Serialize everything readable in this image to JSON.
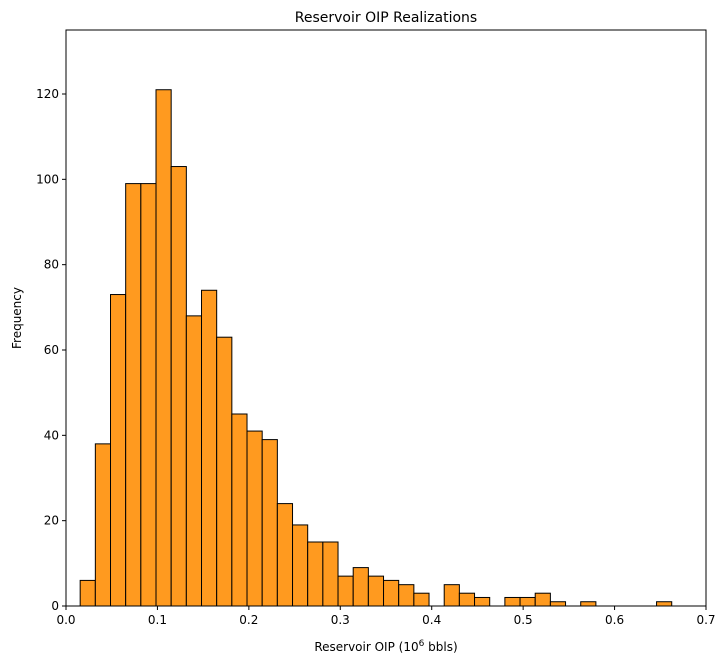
{
  "chart_data": {
    "type": "bar",
    "title": "Reservoir OIP Realizations",
    "xlabel_main": "Reservoir OIP (10",
    "xlabel_sup": "6",
    "xlabel_tail": " bbls)",
    "ylabel": "Frequency",
    "xlim": [
      0.0,
      0.7
    ],
    "ylim": [
      0,
      135
    ],
    "xticks": [
      "0.0",
      "0.1",
      "0.2",
      "0.3",
      "0.4",
      "0.5",
      "0.6",
      "0.7"
    ],
    "yticks": [
      "0",
      "20",
      "40",
      "60",
      "80",
      "100",
      "120"
    ],
    "bar_color": "#ff9a1f",
    "edge_color": "#000000",
    "bin_start": 0.0155,
    "bin_width": 0.01659,
    "values": [
      6,
      38,
      73,
      99,
      99,
      121,
      103,
      68,
      74,
      63,
      45,
      41,
      39,
      24,
      19,
      15,
      15,
      7,
      9,
      7,
      6,
      5,
      3,
      0,
      5,
      3,
      2,
      0,
      2,
      2,
      3,
      1,
      0,
      1,
      0,
      0,
      0,
      0,
      1
    ]
  }
}
